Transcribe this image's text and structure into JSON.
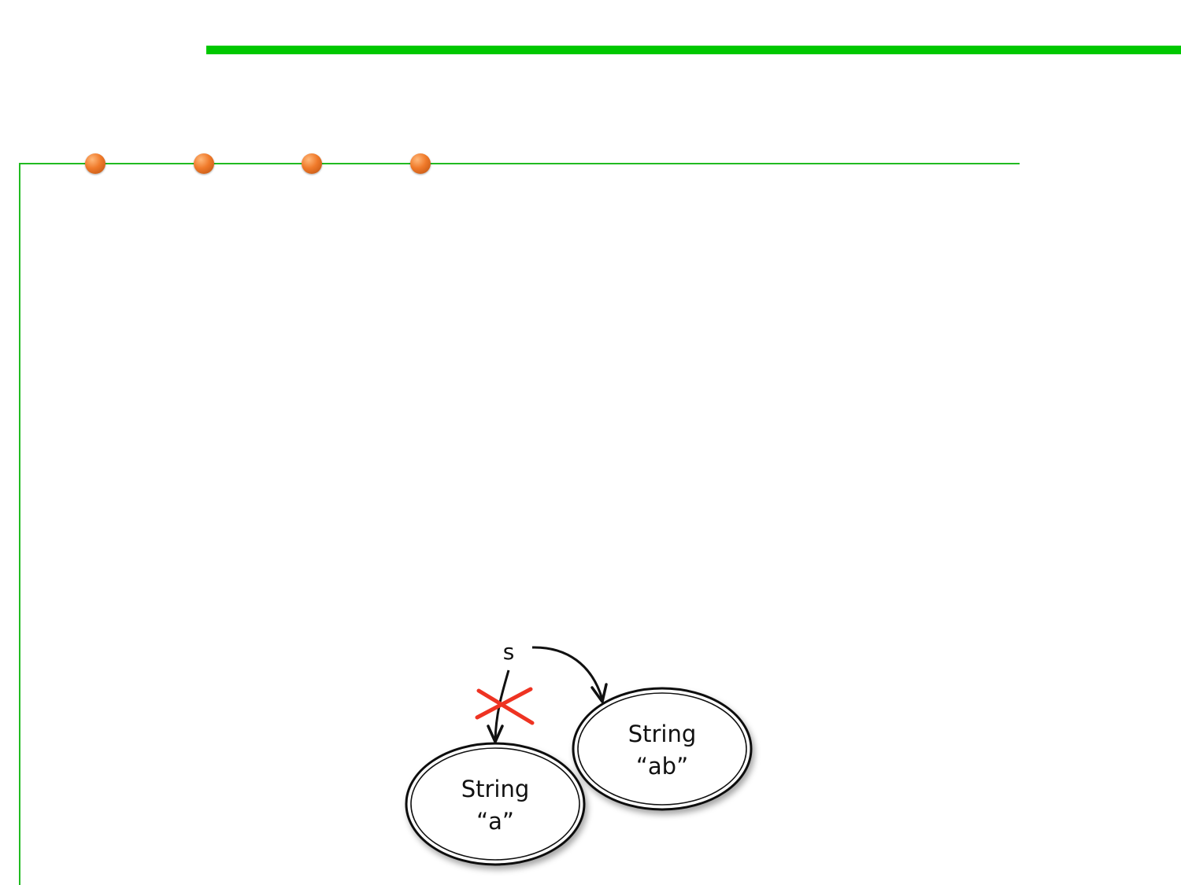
{
  "colors": {
    "accent_green": "#00c800",
    "frame_green": "#22bb22",
    "bullet_orange": "#f07a2a",
    "cross_red": "#ee3322",
    "ink": "#111111"
  },
  "decorations": {
    "bullet_count": 4
  },
  "diagram": {
    "variable_label": "s",
    "object_a": {
      "type_label": "String",
      "value_label": "“a”"
    },
    "object_ab": {
      "type_label": "String",
      "value_label": "“ab”"
    },
    "old_reference_state": "crossed-out",
    "icons": [
      "cross-mark-icon",
      "arrowhead-icon"
    ]
  }
}
